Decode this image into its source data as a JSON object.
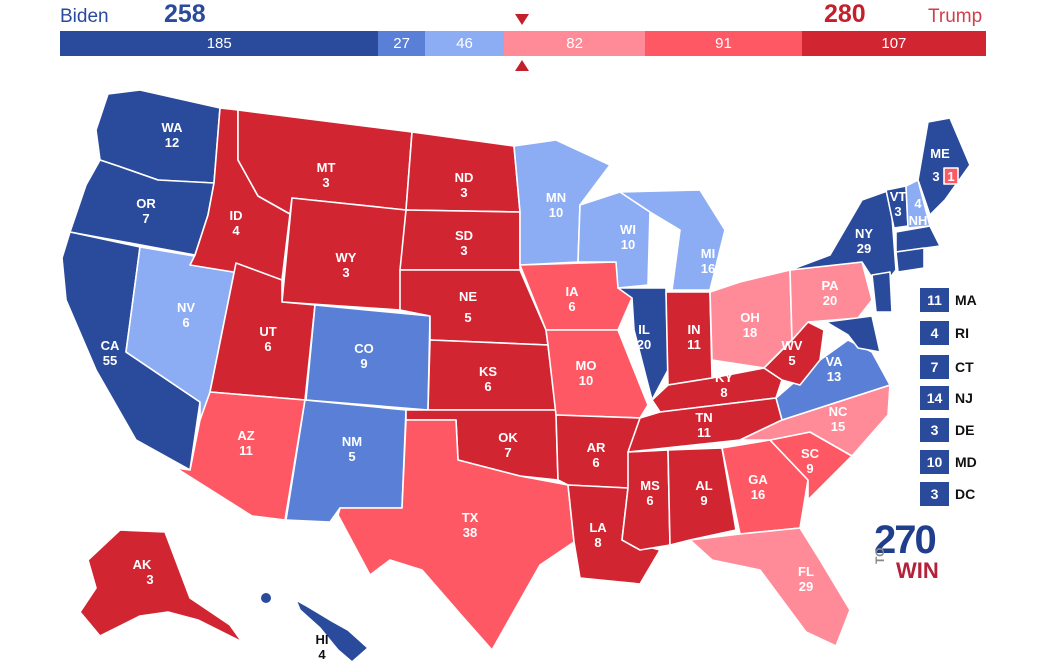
{
  "header": {
    "left_candidate": "Biden",
    "left_total": "258",
    "right_candidate": "Trump",
    "right_total": "280"
  },
  "colors": {
    "safe_dem": "#2a4a9c",
    "likely_dem": "#5a7fd6",
    "lean_dem": "#8cacf4",
    "lean_rep": "#ff8b98",
    "likely_rep": "#ff5865",
    "safe_rep": "#d22532"
  },
  "bar": [
    {
      "label": "185",
      "value": 185,
      "color": "#2a4a9c"
    },
    {
      "label": "27",
      "value": 27,
      "color": "#5a7fd6"
    },
    {
      "label": "46",
      "value": 46,
      "color": "#8cacf4"
    },
    {
      "label": "82",
      "value": 82,
      "color": "#ff8b98"
    },
    {
      "label": "91",
      "value": 91,
      "color": "#ff5865"
    },
    {
      "label": "107",
      "value": 107,
      "color": "#d22532"
    }
  ],
  "states": {
    "WA": {
      "abbr": "WA",
      "ev": "12",
      "rating": "safe_dem"
    },
    "OR": {
      "abbr": "OR",
      "ev": "7",
      "rating": "safe_dem"
    },
    "CA": {
      "abbr": "CA",
      "ev": "55",
      "rating": "safe_dem"
    },
    "NV": {
      "abbr": "NV",
      "ev": "6",
      "rating": "lean_dem"
    },
    "ID": {
      "abbr": "ID",
      "ev": "4",
      "rating": "safe_rep"
    },
    "MT": {
      "abbr": "MT",
      "ev": "3",
      "rating": "safe_rep"
    },
    "WY": {
      "abbr": "WY",
      "ev": "3",
      "rating": "safe_rep"
    },
    "UT": {
      "abbr": "UT",
      "ev": "6",
      "rating": "safe_rep"
    },
    "CO": {
      "abbr": "CO",
      "ev": "9",
      "rating": "likely_dem"
    },
    "AZ": {
      "abbr": "AZ",
      "ev": "11",
      "rating": "likely_rep"
    },
    "NM": {
      "abbr": "NM",
      "ev": "5",
      "rating": "likely_dem"
    },
    "ND": {
      "abbr": "ND",
      "ev": "3",
      "rating": "safe_rep"
    },
    "SD": {
      "abbr": "SD",
      "ev": "3",
      "rating": "safe_rep"
    },
    "NE": {
      "abbr": "NE",
      "ev": "5",
      "rating": "safe_rep"
    },
    "KS": {
      "abbr": "KS",
      "ev": "6",
      "rating": "safe_rep"
    },
    "OK": {
      "abbr": "OK",
      "ev": "7",
      "rating": "safe_rep"
    },
    "TX": {
      "abbr": "TX",
      "ev": "38",
      "rating": "likely_rep"
    },
    "MN": {
      "abbr": "MN",
      "ev": "10",
      "rating": "lean_dem"
    },
    "IA": {
      "abbr": "IA",
      "ev": "6",
      "rating": "likely_rep"
    },
    "MO": {
      "abbr": "MO",
      "ev": "10",
      "rating": "likely_rep"
    },
    "AR": {
      "abbr": "AR",
      "ev": "6",
      "rating": "safe_rep"
    },
    "LA": {
      "abbr": "LA",
      "ev": "8",
      "rating": "safe_rep"
    },
    "WI": {
      "abbr": "WI",
      "ev": "10",
      "rating": "lean_dem"
    },
    "IL": {
      "abbr": "IL",
      "ev": "20",
      "rating": "safe_dem"
    },
    "MI": {
      "abbr": "MI",
      "ev": "16",
      "rating": "lean_dem"
    },
    "IN": {
      "abbr": "IN",
      "ev": "11",
      "rating": "safe_rep"
    },
    "OH": {
      "abbr": "OH",
      "ev": "18",
      "rating": "lean_rep"
    },
    "KY": {
      "abbr": "KY",
      "ev": "8",
      "rating": "safe_rep"
    },
    "TN": {
      "abbr": "TN",
      "ev": "11",
      "rating": "safe_rep"
    },
    "MS": {
      "abbr": "MS",
      "ev": "6",
      "rating": "safe_rep"
    },
    "AL": {
      "abbr": "AL",
      "ev": "9",
      "rating": "safe_rep"
    },
    "GA": {
      "abbr": "GA",
      "ev": "16",
      "rating": "likely_rep"
    },
    "FL": {
      "abbr": "FL",
      "ev": "29",
      "rating": "lean_rep"
    },
    "SC": {
      "abbr": "SC",
      "ev": "9",
      "rating": "likely_rep"
    },
    "NC": {
      "abbr": "NC",
      "ev": "15",
      "rating": "lean_rep"
    },
    "VA": {
      "abbr": "VA",
      "ev": "13",
      "rating": "likely_dem"
    },
    "WV": {
      "abbr": "WV",
      "ev": "5",
      "rating": "safe_rep"
    },
    "PA": {
      "abbr": "PA",
      "ev": "20",
      "rating": "lean_rep"
    },
    "NY": {
      "abbr": "NY",
      "ev": "29",
      "rating": "safe_dem"
    },
    "VT": {
      "abbr": "VT",
      "ev": "3",
      "rating": "safe_dem"
    },
    "NH": {
      "abbr": "NH",
      "ev": "4",
      "rating": "lean_dem"
    },
    "ME": {
      "abbr": "ME",
      "ev": "3",
      "rating": "safe_dem"
    },
    "ME2": {
      "abbr": "",
      "ev": "1",
      "rating": "likely_rep"
    },
    "AK": {
      "abbr": "AK",
      "ev": "3",
      "rating": "safe_rep"
    },
    "HI": {
      "abbr": "HI",
      "ev": "4",
      "rating": "safe_dem"
    }
  },
  "small_states": [
    {
      "ev": "11",
      "abbr": "MA"
    },
    {
      "ev": "4",
      "abbr": "RI"
    },
    {
      "ev": "7",
      "abbr": "CT"
    },
    {
      "ev": "14",
      "abbr": "NJ"
    },
    {
      "ev": "3",
      "abbr": "DE"
    },
    {
      "ev": "10",
      "abbr": "MD"
    },
    {
      "ev": "3",
      "abbr": "DC"
    }
  ],
  "logo": {
    "number": "270",
    "to": "TO",
    "win": "WIN"
  }
}
